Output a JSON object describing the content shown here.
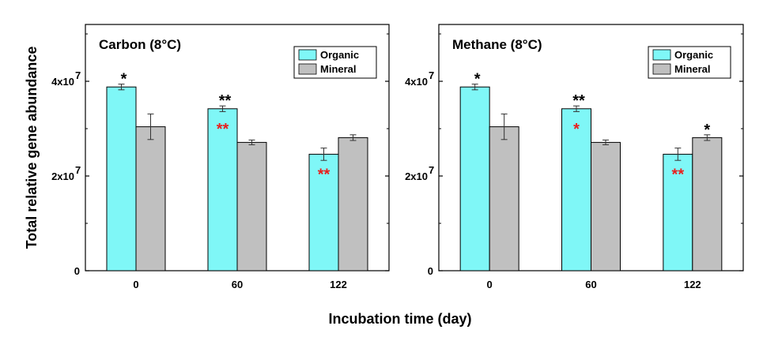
{
  "figure": {
    "ylabel": "Total relative gene abundance",
    "xlabel": "Incubation time (day)"
  },
  "colors": {
    "organic": "#7ff7f7",
    "mineral": "#c0c0c0",
    "star_black": "#000000",
    "star_red": "#e8201e"
  },
  "chart_data": [
    {
      "type": "bar",
      "title": "Carbon (8°C)",
      "categories": [
        "0",
        "60",
        "122"
      ],
      "ylim": [
        0,
        52000000
      ],
      "yticks": [
        {
          "value": 0,
          "label": "0"
        },
        {
          "value": 20000000,
          "label": "2x10",
          "exp": "7"
        },
        {
          "value": 40000000,
          "label": "4x10",
          "exp": "7"
        }
      ],
      "legend": {
        "position": "top-right",
        "entries": [
          "Organic",
          "Mineral"
        ]
      },
      "series": [
        {
          "name": "Organic",
          "values": [
            38800000,
            34200000,
            24600000
          ],
          "errors": [
            600000,
            600000,
            1300000
          ]
        },
        {
          "name": "Mineral",
          "values": [
            30400000,
            27100000,
            28100000
          ],
          "errors": [
            2700000,
            500000,
            600000
          ]
        }
      ],
      "annotations": [
        {
          "category": 0,
          "series": 0,
          "text": "*",
          "color": "black",
          "anchor": "above"
        },
        {
          "category": 1,
          "series": 0,
          "text": "**",
          "color": "black",
          "anchor": "above"
        },
        {
          "category": 1,
          "series": 0,
          "text": "**",
          "color": "red",
          "anchor": "inside"
        },
        {
          "category": 2,
          "series": 0,
          "text": "**",
          "color": "red",
          "anchor": "inside"
        }
      ]
    },
    {
      "type": "bar",
      "title": "Methane (8°C)",
      "categories": [
        "0",
        "60",
        "122"
      ],
      "ylim": [
        0,
        52000000
      ],
      "yticks": [
        {
          "value": 0,
          "label": "0"
        },
        {
          "value": 20000000,
          "label": "2x10",
          "exp": "7"
        },
        {
          "value": 40000000,
          "label": "4x10",
          "exp": "7"
        }
      ],
      "legend": {
        "position": "top-right",
        "entries": [
          "Organic",
          "Mineral"
        ]
      },
      "series": [
        {
          "name": "Organic",
          "values": [
            38800000,
            34200000,
            24600000
          ],
          "errors": [
            600000,
            600000,
            1300000
          ]
        },
        {
          "name": "Mineral",
          "values": [
            30400000,
            27100000,
            28100000
          ],
          "errors": [
            2700000,
            500000,
            600000
          ]
        }
      ],
      "annotations": [
        {
          "category": 0,
          "series": 0,
          "text": "*",
          "color": "black",
          "anchor": "above"
        },
        {
          "category": 1,
          "series": 0,
          "text": "**",
          "color": "black",
          "anchor": "above"
        },
        {
          "category": 1,
          "series": 0,
          "text": "*",
          "color": "red",
          "anchor": "inside"
        },
        {
          "category": 2,
          "series": 0,
          "text": "**",
          "color": "red",
          "anchor": "inside"
        },
        {
          "category": 2,
          "series": 1,
          "text": "*",
          "color": "black",
          "anchor": "above"
        }
      ]
    }
  ]
}
